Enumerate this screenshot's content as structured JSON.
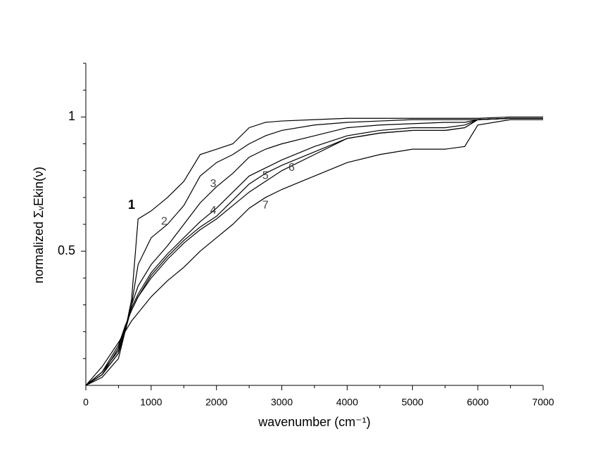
{
  "chart_data": {
    "type": "line",
    "xlabel": "wavenumber (cm⁻¹)",
    "ylabel": "normalized ΣᵥEkin(ν)",
    "x": [
      0,
      250,
      500,
      600,
      700,
      800,
      1000,
      1250,
      1500,
      1750,
      2000,
      2250,
      2500,
      2750,
      3000,
      3500,
      4000,
      4500,
      5000,
      5500,
      5800,
      6000,
      6500,
      7000
    ],
    "series": [
      {
        "name": "1",
        "color": "#000000",
        "values": [
          0,
          0.04,
          0.12,
          0.2,
          0.32,
          0.62,
          0.65,
          0.7,
          0.76,
          0.86,
          0.88,
          0.9,
          0.96,
          0.98,
          0.985,
          0.99,
          0.995,
          0.995,
          0.995,
          0.995,
          0.995,
          0.995,
          1.0,
          1.0
        ]
      },
      {
        "name": "2",
        "color": "#000000",
        "values": [
          0,
          0.04,
          0.12,
          0.2,
          0.3,
          0.45,
          0.55,
          0.6,
          0.67,
          0.78,
          0.83,
          0.86,
          0.9,
          0.93,
          0.95,
          0.97,
          0.98,
          0.985,
          0.99,
          0.99,
          0.99,
          0.99,
          0.995,
          0.995
        ]
      },
      {
        "name": "3",
        "color": "#000000",
        "values": [
          0,
          0.05,
          0.13,
          0.21,
          0.3,
          0.37,
          0.45,
          0.52,
          0.6,
          0.68,
          0.74,
          0.79,
          0.85,
          0.88,
          0.9,
          0.93,
          0.96,
          0.97,
          0.975,
          0.98,
          0.98,
          0.99,
          0.995,
          0.995
        ]
      },
      {
        "name": "4",
        "color": "#000000",
        "values": [
          0,
          0.05,
          0.15,
          0.22,
          0.28,
          0.33,
          0.4,
          0.47,
          0.53,
          0.58,
          0.62,
          0.67,
          0.72,
          0.76,
          0.8,
          0.86,
          0.92,
          0.94,
          0.95,
          0.95,
          0.96,
          0.99,
          0.995,
          0.995
        ]
      },
      {
        "name": "5",
        "color": "#000000",
        "values": [
          0,
          0.04,
          0.14,
          0.22,
          0.28,
          0.33,
          0.41,
          0.48,
          0.54,
          0.59,
          0.63,
          0.69,
          0.75,
          0.79,
          0.82,
          0.87,
          0.92,
          0.94,
          0.95,
          0.95,
          0.96,
          0.99,
          0.995,
          0.995
        ]
      },
      {
        "name": "6",
        "color": "#000000",
        "values": [
          0,
          0.03,
          0.1,
          0.2,
          0.29,
          0.34,
          0.42,
          0.49,
          0.55,
          0.61,
          0.66,
          0.72,
          0.78,
          0.81,
          0.84,
          0.89,
          0.93,
          0.95,
          0.96,
          0.96,
          0.97,
          0.99,
          0.995,
          0.995
        ]
      },
      {
        "name": "7",
        "color": "#000000",
        "values": [
          0,
          0.07,
          0.16,
          0.2,
          0.24,
          0.27,
          0.33,
          0.39,
          0.44,
          0.5,
          0.55,
          0.6,
          0.66,
          0.7,
          0.73,
          0.78,
          0.83,
          0.86,
          0.88,
          0.88,
          0.89,
          0.97,
          0.99,
          0.99
        ]
      }
    ],
    "xlim": [
      0,
      7000
    ],
    "xticks": [
      0,
      1000,
      2000,
      3000,
      4000,
      5000,
      6000,
      7000
    ],
    "xminorticks": [
      500,
      1500,
      2500,
      3500,
      4500,
      5500,
      6500
    ],
    "ylim": [
      0,
      1.2
    ],
    "yticks": [
      0.5,
      1
    ],
    "yminorticks": [
      0.1,
      0.2,
      0.3,
      0.4,
      0.6,
      0.7,
      0.8,
      0.9,
      1.1,
      1.2
    ],
    "grid": false
  }
}
